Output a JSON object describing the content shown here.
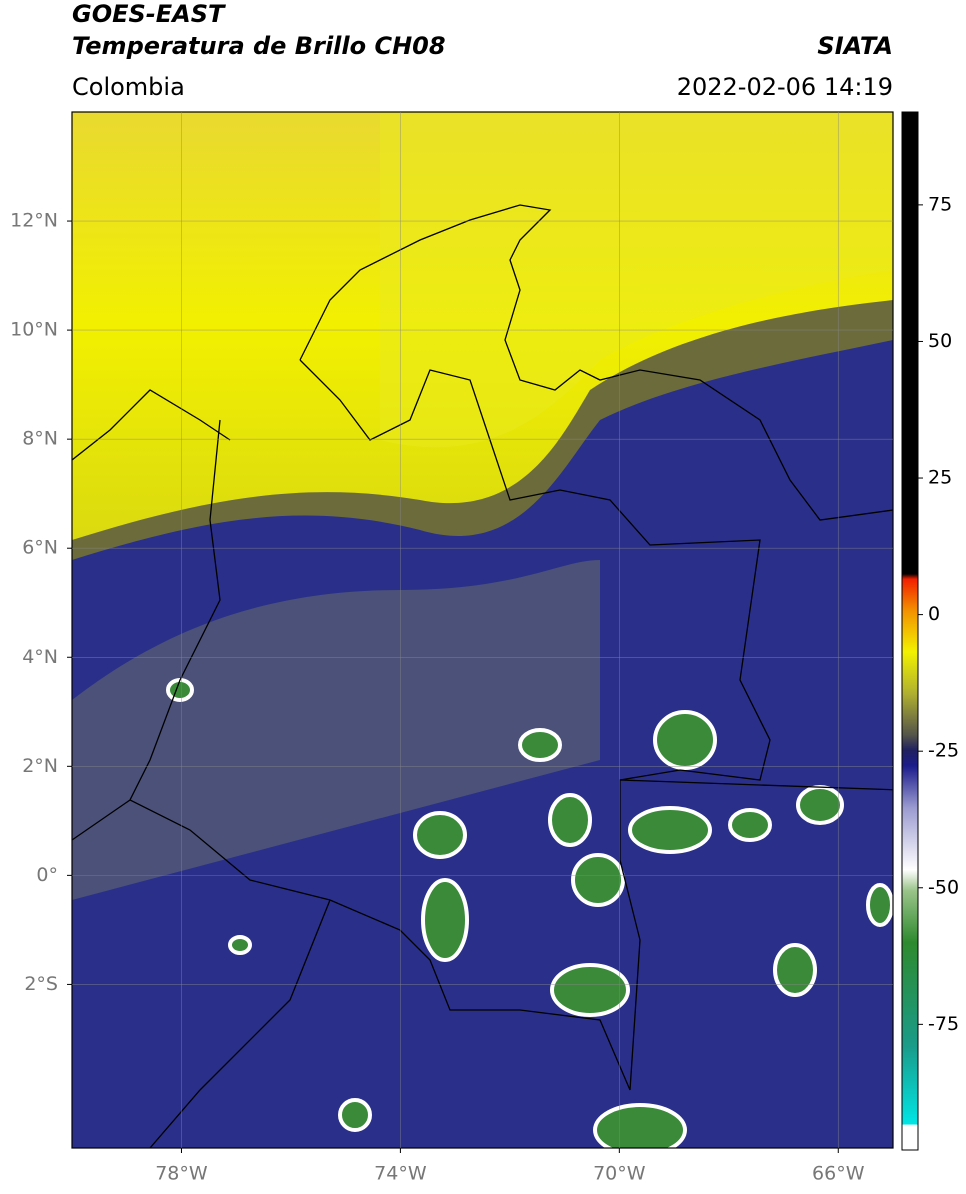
{
  "header": {
    "title_line1": "GOES-EAST",
    "title_line2": "Temperatura de Brillo CH08",
    "source": "SIATA",
    "region": "Colombia",
    "datetime": "2022-02-06 14:19"
  },
  "map": {
    "xlim": [
      -80,
      -65
    ],
    "ylim": [
      -5,
      14
    ],
    "xticks": [
      {
        "value": -78,
        "label": "78°W"
      },
      {
        "value": -74,
        "label": "74°W"
      },
      {
        "value": -70,
        "label": "70°W"
      },
      {
        "value": -66,
        "label": "66°W"
      }
    ],
    "yticks": [
      {
        "value": 12,
        "label": "12°N"
      },
      {
        "value": 10,
        "label": "10°N"
      },
      {
        "value": 8,
        "label": "8°N"
      },
      {
        "value": 6,
        "label": "6°N"
      },
      {
        "value": 4,
        "label": "4°N"
      },
      {
        "value": 2,
        "label": "2°N"
      },
      {
        "value": 0,
        "label": "0°"
      },
      {
        "value": -2,
        "label": "2°S"
      }
    ],
    "grid": true
  },
  "colorbar": {
    "lim": [
      -98,
      92
    ],
    "ticks": [
      75,
      50,
      25,
      0,
      -25,
      -50,
      -75
    ]
  }
}
